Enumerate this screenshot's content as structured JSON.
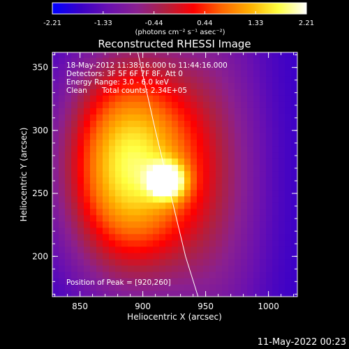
{
  "colors": {
    "background": "#000000",
    "text": "#ffffff",
    "colormap": [
      "#0000ff",
      "#3a00c8",
      "#6a10b0",
      "#8a2090",
      "#b02040",
      "#ff0000",
      "#ff6600",
      "#ffb000",
      "#ffff40",
      "#ffffff"
    ],
    "limb": "#ffffff"
  },
  "colorbar": {
    "ticks": [
      "-2.21",
      "-1.33",
      "-0.44",
      "0.44",
      "1.33",
      "2.21"
    ],
    "range": [
      -2.21,
      2.21
    ],
    "units_label": "(photons cm⁻² s⁻¹ asec⁻²)"
  },
  "title": "Reconstructed RHESSI Image",
  "annotation": {
    "line1": "18-May-2012 11:38:16.000 to 11:44:16.000",
    "line2": "Detectors: 3F 5F 6F 7F 8F, Att 0",
    "line3": "Energy Range: 3.0 - 6.0 keV",
    "line4_label": "Clean",
    "line4_counts": "Total counts: 2.34E+05",
    "peak": "Position of Peak = [920,260]"
  },
  "footer_date": "11-May-2022 00:23",
  "chart_data": {
    "type": "heatmap",
    "title": "Reconstructed RHESSI Image",
    "xlabel": "Heliocentric X (arcsec)",
    "ylabel": "Heliocentric Y (arcsec)",
    "xlim": [
      828,
      1023
    ],
    "ylim": [
      168,
      362
    ],
    "xticks": [
      850,
      900,
      950,
      1000
    ],
    "yticks": [
      200,
      250,
      300,
      350
    ],
    "peak": [
      920,
      260
    ],
    "sources": [
      {
        "x": 890,
        "y": 272,
        "sx": 38,
        "sy": 62,
        "amp": 1.0
      },
      {
        "x": 920,
        "y": 260,
        "sx": 10,
        "sy": 10,
        "amp": 0.6
      },
      {
        "x": 960,
        "y": 265,
        "sx": 30,
        "sy": 110,
        "amp": 0.28
      }
    ],
    "background_level": 0.12,
    "limb_points": [
      [
        896,
        362
      ],
      [
        910,
        300
      ],
      [
        922,
        250
      ],
      [
        934,
        200
      ],
      [
        944,
        168
      ]
    ]
  }
}
